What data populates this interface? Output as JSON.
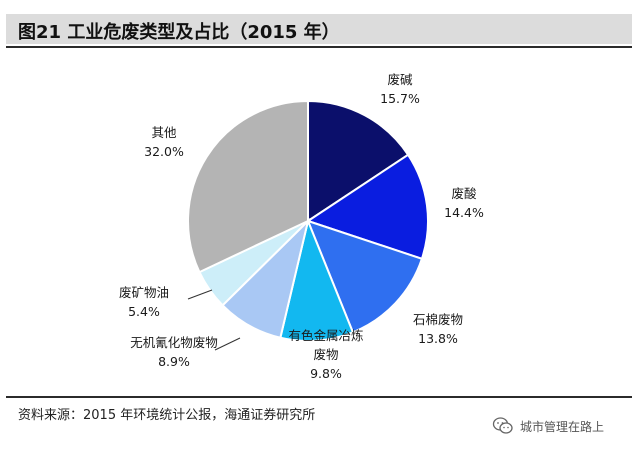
{
  "header": {
    "title": "图21  工业危废类型及占比（2015 年）"
  },
  "footer": {
    "source": "资料来源：2015 年环境统计公报，海通证券研究所"
  },
  "watermark": {
    "text": "城市管理在路上",
    "icon": "wechat-icon"
  },
  "chart_data": {
    "type": "pie",
    "title": "图21  工业危废类型及占比（2015 年）",
    "slices": [
      {
        "name": "废碱",
        "value": 15.7,
        "label": "15.7%",
        "color": "#0b0f6b"
      },
      {
        "name": "废酸",
        "value": 14.4,
        "label": "14.4%",
        "color": "#0a1de0"
      },
      {
        "name": "石棉废物",
        "value": 13.8,
        "label": "13.8%",
        "color": "#2f6ff0"
      },
      {
        "name": "有色金属冶炼废物",
        "value": 9.8,
        "label": "9.8%",
        "color": "#12b8f0"
      },
      {
        "name": "无机氰化物废物",
        "value": 8.9,
        "label": "8.9%",
        "color": "#a9c8f4"
      },
      {
        "name": "废矿物油",
        "value": 5.4,
        "label": "5.4%",
        "color": "#cdeef9"
      },
      {
        "name": "其他",
        "value": 32.0,
        "label": "32.0%",
        "color": "#b4b4b4"
      }
    ],
    "start_angle_deg": 0,
    "direction": "clockwise",
    "legend": "none",
    "labels": "outside"
  }
}
